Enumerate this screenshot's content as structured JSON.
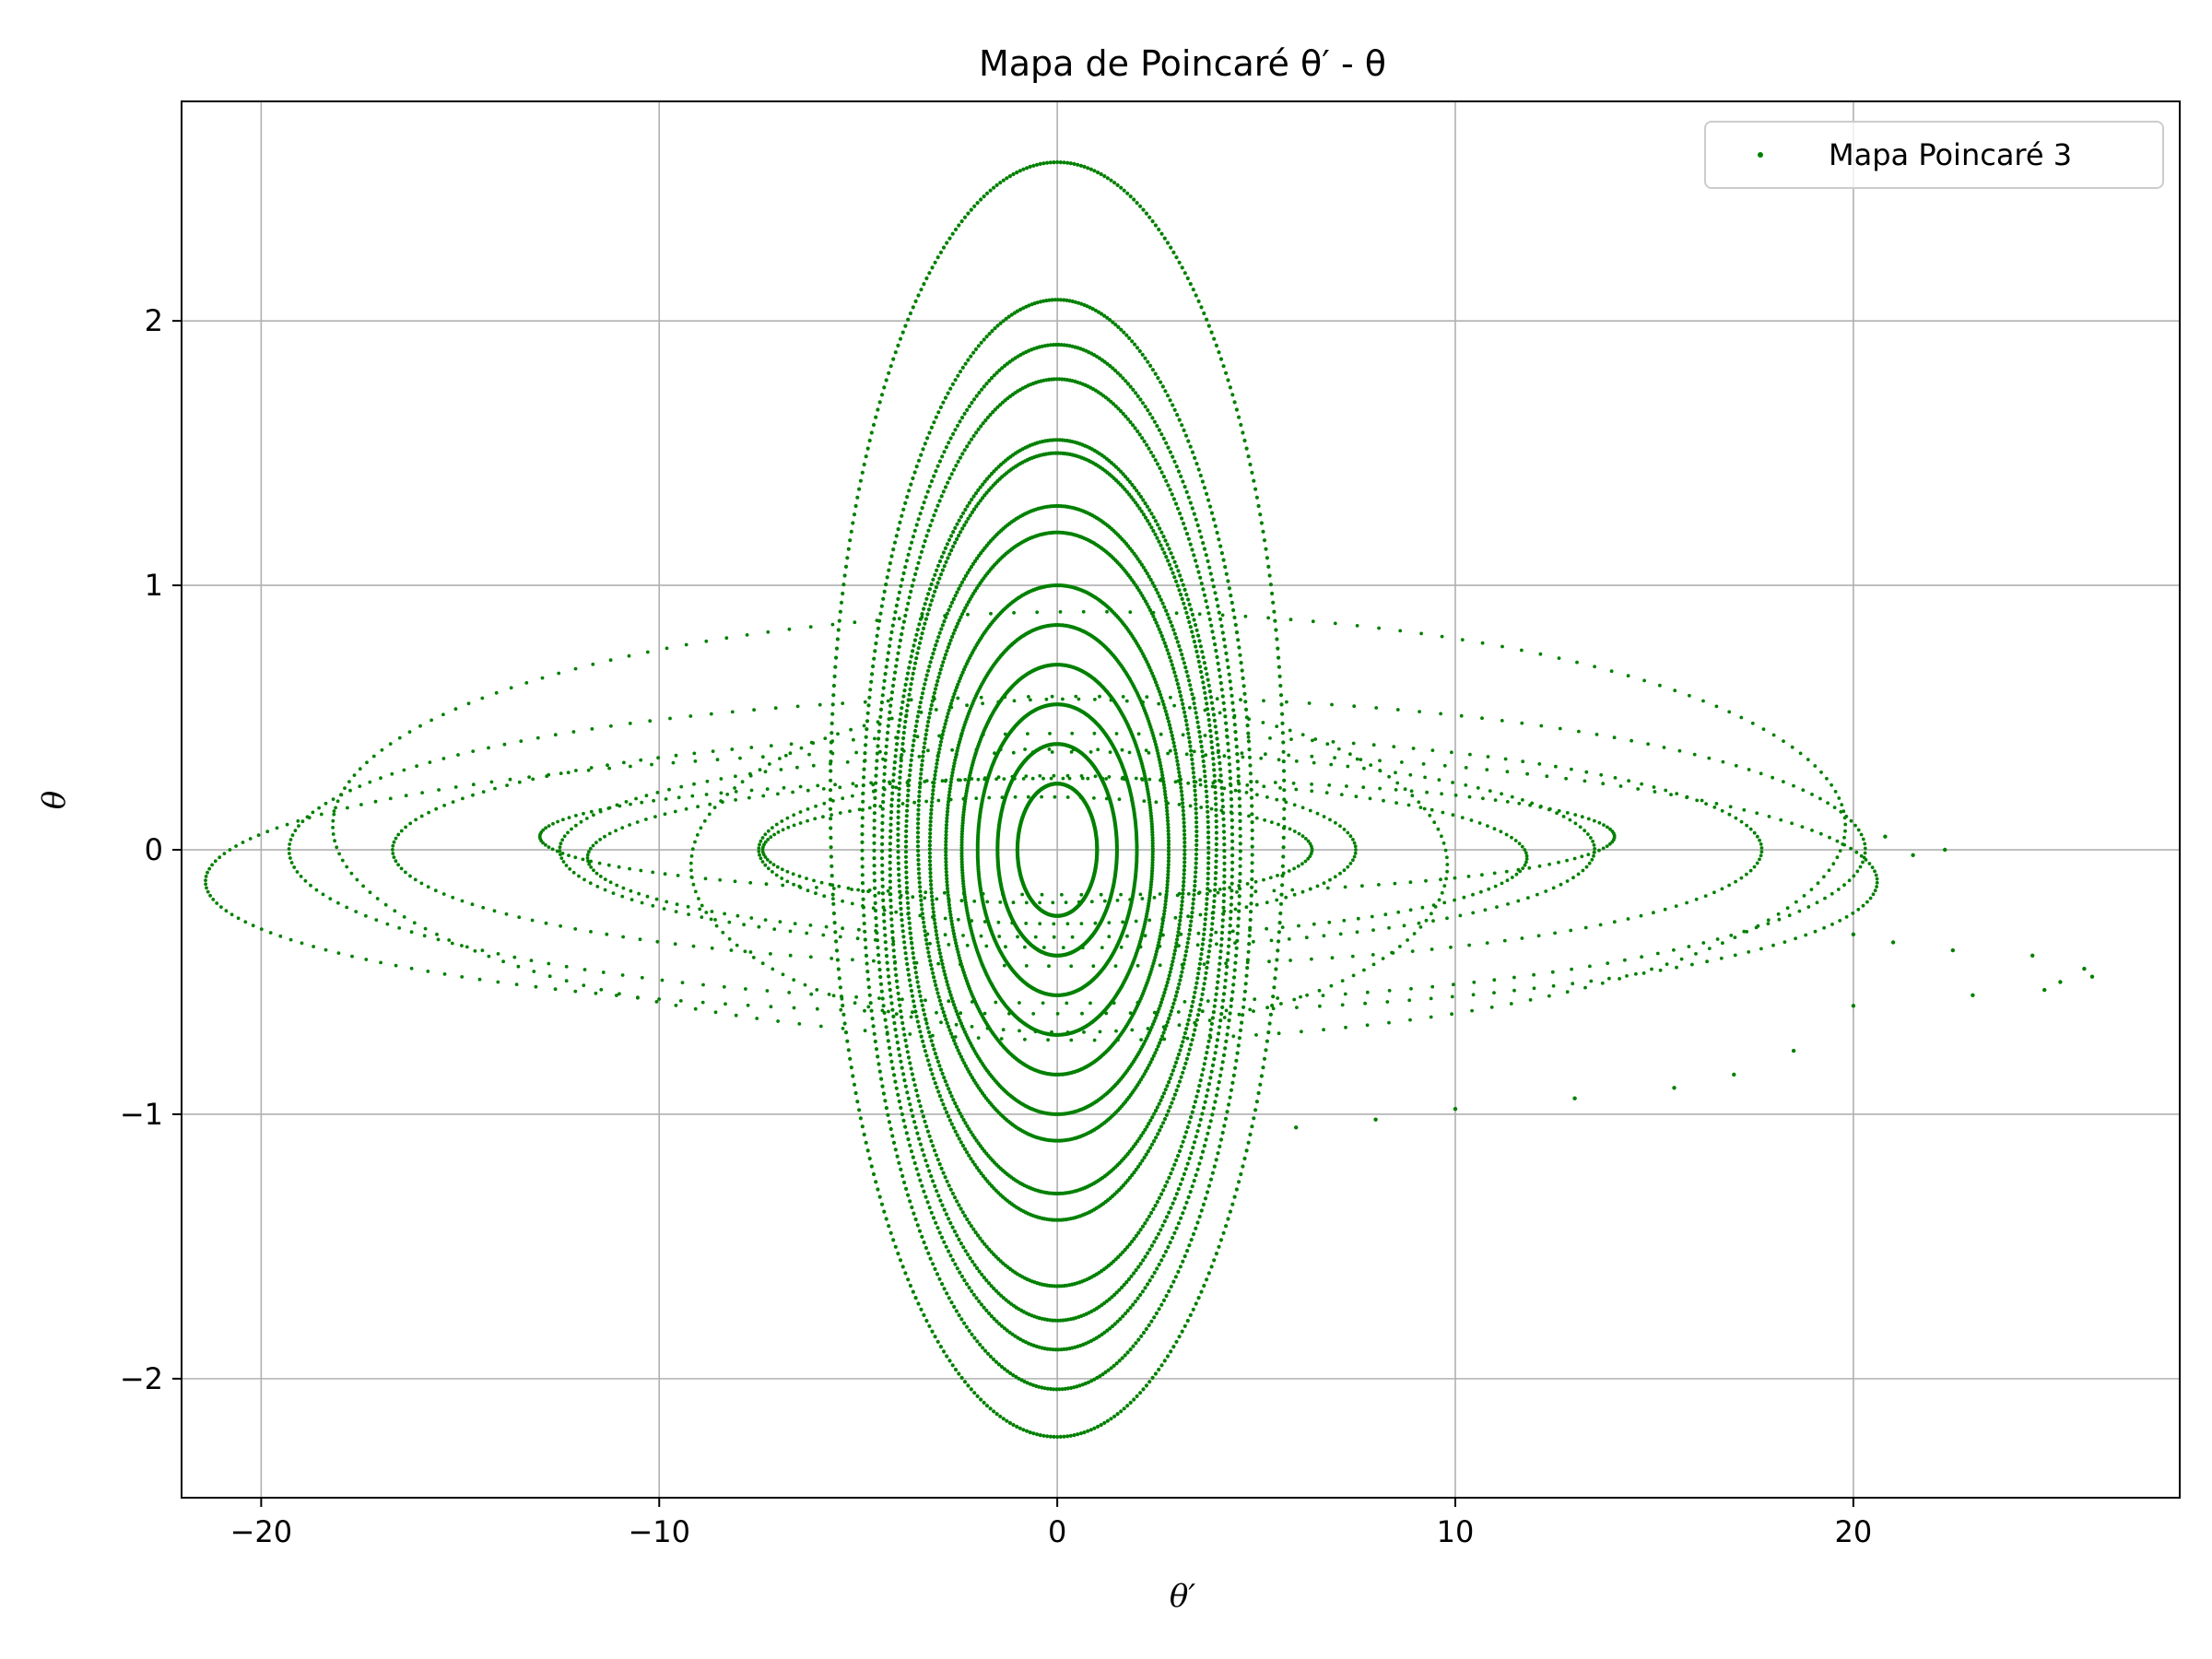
{
  "chart_data": {
    "type": "scatter",
    "title": "Mapa de Poincaré θ′ - θ",
    "xlabel": "θ′",
    "ylabel": "θ",
    "xlim": [
      -22,
      28.2
    ],
    "ylim": [
      -2.45,
      2.83
    ],
    "xticks": [
      -20,
      -10,
      0,
      10,
      20
    ],
    "xtick_labels": [
      "−20",
      "−10",
      "0",
      "10",
      "20"
    ],
    "yticks": [
      -2,
      -1,
      0,
      1,
      2
    ],
    "ytick_labels": [
      "−2",
      "−1",
      "0",
      "1",
      "2"
    ],
    "grid": true,
    "legend_position": "top-right",
    "series": [
      {
        "name": "Mapa Poincaré 3",
        "color": "#008000",
        "marker": "point",
        "orbits": [
          {
            "center": [
              0,
              0.19
            ],
            "amplitude": [
              5.7,
              2.41
            ]
          },
          {
            "center": [
              0,
              0.02
            ],
            "amplitude": [
              4.9,
              2.06
            ]
          },
          {
            "center": [
              0,
              0.01
            ],
            "amplitude": [
              4.6,
              1.9
            ]
          },
          {
            "center": [
              0,
              0.0
            ],
            "amplitude": [
              4.4,
              1.78
            ]
          },
          {
            "center": [
              0,
              -0.05
            ],
            "amplitude": [
              4.2,
              1.6
            ]
          },
          {
            "center": [
              0,
              0.05
            ],
            "amplitude": [
              4.0,
              1.45
            ]
          },
          {
            "center": [
              0,
              0.0
            ],
            "amplitude": [
              3.8,
              1.3
            ]
          },
          {
            "center": [
              0,
              0.05
            ],
            "amplitude": [
              3.5,
              1.15
            ]
          },
          {
            "center": [
              0,
              0.0
            ],
            "amplitude": [
              3.2,
              1.0
            ]
          },
          {
            "center": [
              0,
              0.0
            ],
            "amplitude": [
              2.8,
              0.85
            ]
          },
          {
            "center": [
              0,
              0.0
            ],
            "amplitude": [
              2.4,
              0.7
            ]
          },
          {
            "center": [
              0,
              0.0
            ],
            "amplitude": [
              2.0,
              0.55
            ]
          },
          {
            "center": [
              0,
              0.0
            ],
            "amplitude": [
              1.5,
              0.4
            ]
          },
          {
            "center": [
              0,
              0.0
            ],
            "amplitude": [
              1.0,
              0.25
            ]
          },
          {
            "center": [
              0.5,
              0.0
            ],
            "amplitude": [
              19.8,
              0.58
            ]
          },
          {
            "center": [
              0.5,
              0.0
            ],
            "amplitude": [
              17.2,
              0.44
            ]
          },
          {
            "center": [
              0.5,
              0.0
            ],
            "amplitude": [
              13.0,
              0.37
            ]
          },
          {
            "center": [
              0.3,
              -0.06
            ],
            "amplitude": [
              9.5,
              0.63
            ]
          },
          {
            "center": [
              0.8,
              0.09
            ],
            "amplitude": [
              19.0,
              0.81
            ]
          },
          {
            "center": [
              -0.4,
              -0.12
            ],
            "amplitude": [
              21.0,
              0.5
            ]
          },
          {
            "center": [
              0.0,
              0.0
            ],
            "amplitude": [
              7.5,
              0.28
            ]
          },
          {
            "center": [
              0.5,
              0.05
            ],
            "amplitude": [
              13.5,
              0.22
            ]
          },
          {
            "center": [
              0.0,
              -0.03
            ],
            "amplitude": [
              11.8,
              0.3
            ]
          },
          {
            "center": [
              -0.5,
              0.0
            ],
            "amplitude": [
              6.9,
              0.2
            ]
          }
        ],
        "scattered_points": [
          [
            22.3,
            0.0
          ],
          [
            21.5,
            -0.02
          ],
          [
            20.8,
            0.05
          ],
          [
            20.0,
            -0.32
          ],
          [
            21.0,
            -0.35
          ],
          [
            22.5,
            -0.38
          ],
          [
            24.5,
            -0.4
          ],
          [
            25.8,
            -0.45
          ],
          [
            26.0,
            -0.48
          ],
          [
            25.2,
            -0.5
          ],
          [
            24.8,
            -0.53
          ],
          [
            23.0,
            -0.55
          ],
          [
            20.0,
            -0.59
          ],
          [
            18.5,
            -0.76
          ],
          [
            17.0,
            -0.85
          ],
          [
            15.5,
            -0.9
          ],
          [
            13.0,
            -0.94
          ],
          [
            10.0,
            -0.98
          ],
          [
            8.0,
            -1.02
          ],
          [
            6.0,
            -1.05
          ]
        ]
      }
    ]
  }
}
